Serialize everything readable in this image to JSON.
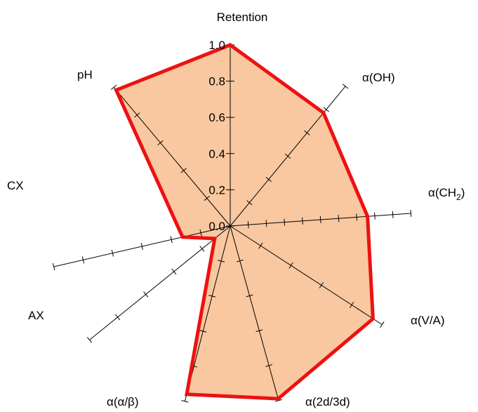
{
  "chart_data": {
    "type": "radar",
    "axes": [
      {
        "key": "retention",
        "label": "Retention"
      },
      {
        "key": "oh",
        "label": "α(OH)"
      },
      {
        "key": "ch2",
        "label": "α(CH",
        "label_sub": "2",
        "label_suffix": ")"
      },
      {
        "key": "va",
        "label": "α(V/A)"
      },
      {
        "key": "d2d3d",
        "label": "α(2d/3d)"
      },
      {
        "key": "ab",
        "label": "α(α/β)"
      },
      {
        "key": "ax",
        "label": "AX"
      },
      {
        "key": "cx",
        "label": "CX"
      },
      {
        "key": "ph",
        "label": "pH"
      }
    ],
    "radial_ticks": [
      "0.0",
      "0.2",
      "0.4",
      "0.6",
      "0.8",
      "1.0"
    ],
    "rlim": [
      0,
      1
    ],
    "series": [
      {
        "values": [
          1.0,
          0.81,
          0.76,
          0.94,
          0.99,
          0.96,
          0.11,
          0.27,
          0.98
        ],
        "fill": "#f9c8a0",
        "stroke": "#ee1111"
      }
    ],
    "grid": false
  }
}
